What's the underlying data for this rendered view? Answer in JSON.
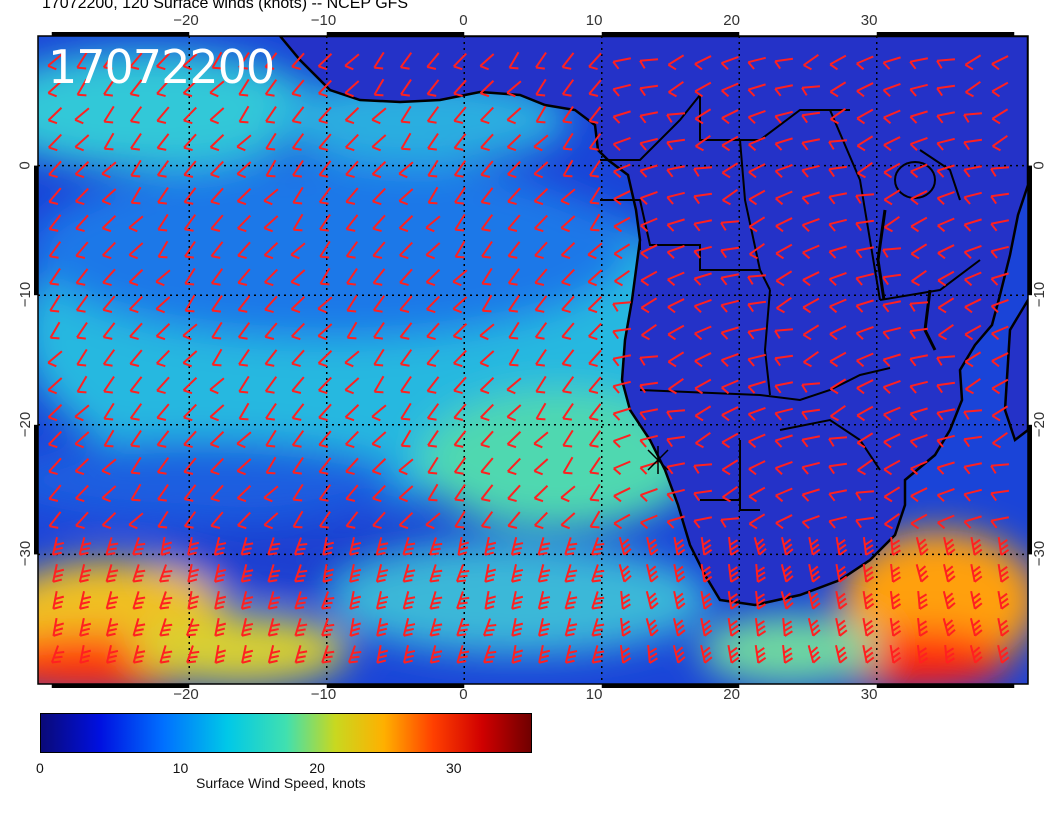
{
  "title": "17072200, 120 Surface winds (knots) -- NCEP GFS",
  "stamp": "17072200",
  "map": {
    "lon_range": [
      -31,
      41
    ],
    "lat_range": [
      -40,
      10
    ],
    "lon_ticks": [
      -20,
      -10,
      0,
      10,
      20,
      30
    ],
    "lat_ticks": [
      0,
      -10,
      -20,
      -30
    ],
    "lon_tick_labels": [
      "−20",
      "−10",
      "0",
      "10",
      "20",
      "30"
    ],
    "lat_tick_labels": [
      "0",
      "−10",
      "−20",
      "−30"
    ],
    "barb_color": "#ff2020",
    "ocean_shading": "wind speed",
    "land_color": "#1f2fd0"
  },
  "colorbar": {
    "label": "Surface Wind Speed, knots",
    "ticks": [
      0,
      10,
      20,
      30
    ],
    "tick_labels": [
      "0",
      "10",
      "20",
      "30"
    ],
    "range": [
      0,
      36
    ],
    "colormap": [
      "#00008f",
      "#0000ff",
      "#0080ff",
      "#00e0e0",
      "#80ff80",
      "#ffff00",
      "#ff8000",
      "#ff0000",
      "#800000"
    ]
  }
}
